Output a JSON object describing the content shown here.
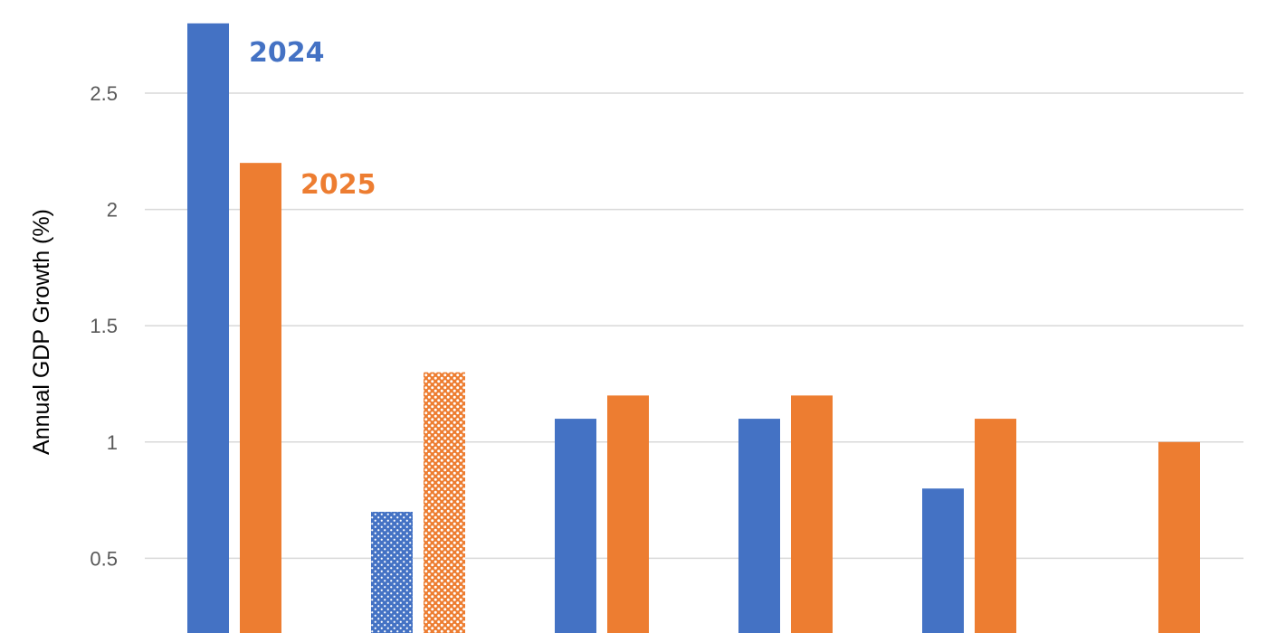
{
  "chart_data": {
    "type": "bar",
    "title": "",
    "xlabel": "",
    "ylabel": "Annual GDP Growth (%)",
    "ylim": [
      0,
      2.8
    ],
    "yticks": [
      "0.5",
      "1",
      "1.5",
      "2",
      "2.5"
    ],
    "grid": true,
    "legend": "inline-labels-top-left",
    "categories": [
      "",
      "",
      "",
      "",
      "",
      ""
    ],
    "series": [
      {
        "name": "2024",
        "color": "#4472C4",
        "values": [
          2.8,
          0.7,
          1.1,
          1.1,
          0.8,
          null
        ],
        "hatched": [
          false,
          true,
          false,
          false,
          false,
          false
        ]
      },
      {
        "name": "2025",
        "color": "#ED7D31",
        "values": [
          2.2,
          1.3,
          1.2,
          1.2,
          1.1,
          1.0
        ],
        "hatched": [
          false,
          true,
          false,
          false,
          false,
          false
        ]
      }
    ]
  }
}
